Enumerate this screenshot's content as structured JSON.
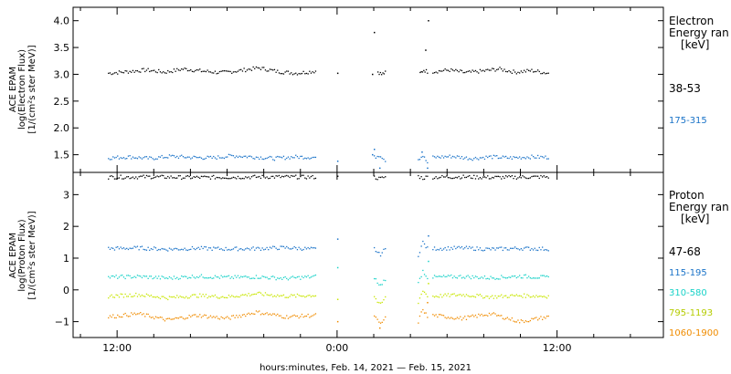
{
  "chart_data": [
    {
      "type": "scatter",
      "panel": "electron",
      "ylabel": [
        "ACE EPAM",
        "log(Electron Flux)",
        "[1/(cm²s ster MeV)]"
      ],
      "ylim": [
        1.17,
        4.25
      ],
      "yticks": [
        1.5,
        2.0,
        2.5,
        3.0,
        3.5,
        4.0
      ],
      "ytick_labels": [
        "1.5",
        "2.0",
        "2.5",
        "3.0",
        "3.5",
        "4.0"
      ],
      "legend_title": [
        "Electron",
        "Energy ran",
        "[keV]"
      ],
      "series": [
        {
          "name": "38-53",
          "color": "#000000",
          "segments": [
            {
              "x_start": -12.5,
              "x_end": -1.2,
              "values": [
                3.02,
                3.05,
                3.08,
                3.04,
                3.1,
                3.06,
                3.03,
                3.07,
                3.12,
                3.05,
                3.02,
                3.06
              ]
            },
            {
              "x_start": 2.2,
              "x_end": 2.6,
              "values": [
                3.05,
                3.0,
                3.03
              ]
            },
            {
              "x_start": 4.5,
              "x_end": 4.9,
              "values": [
                3.02,
                3.08,
                3.05
              ]
            },
            {
              "x_start": 5.2,
              "x_end": 11.5,
              "values": [
                3.05,
                3.08,
                3.03,
                3.06,
                3.1,
                3.04,
                3.07,
                3.02
              ]
            }
          ],
          "points": [
            {
              "x": 0.0,
              "y": 3.02
            },
            {
              "x": 1.9,
              "y": 3.0
            },
            {
              "x": 2.0,
              "y": 3.78
            },
            {
              "x": 4.8,
              "y": 3.45
            },
            {
              "x": 4.95,
              "y": 4.0
            }
          ]
        },
        {
          "name": "175-315",
          "color": "#1a73c8",
          "segments": [
            {
              "x_start": -12.5,
              "x_end": -1.2,
              "values": [
                1.44,
                1.46,
                1.43,
                1.47,
                1.45,
                1.44,
                1.48,
                1.46,
                1.43,
                1.46,
                1.45
              ]
            },
            {
              "x_start": 2.0,
              "x_end": 2.6,
              "values": [
                1.45,
                1.5,
                1.4
              ]
            },
            {
              "x_start": 4.4,
              "x_end": 4.9,
              "values": [
                1.42,
                1.48,
                1.35
              ]
            },
            {
              "x_start": 5.2,
              "x_end": 11.5,
              "values": [
                1.45,
                1.47,
                1.43,
                1.46,
                1.44,
                1.46,
                1.45
              ]
            }
          ],
          "points": [
            {
              "x": 0.0,
              "y": 1.38
            },
            {
              "x": 1.9,
              "y": 1.5
            },
            {
              "x": 2.0,
              "y": 1.6
            },
            {
              "x": 2.3,
              "y": 1.25
            },
            {
              "x": 4.6,
              "y": 1.55
            },
            {
              "x": 4.9,
              "y": 1.25
            }
          ]
        }
      ]
    },
    {
      "type": "scatter",
      "panel": "proton",
      "ylabel": [
        "ACE EPAM",
        "log(Proton Flux)",
        "[1/(cm²s ster MeV)]"
      ],
      "ylim": [
        -1.5,
        3.7
      ],
      "yticks": [
        -1,
        0,
        1,
        2,
        3
      ],
      "ytick_labels": [
        "−1",
        "0",
        "1",
        "2",
        "3"
      ],
      "legend_title": [
        "Proton",
        "Energy ran",
        "[keV]"
      ],
      "series": [
        {
          "name": "47-68",
          "color": "#000000",
          "segments": [
            {
              "x_start": -12.5,
              "x_end": -1.2,
              "values": [
                3.55,
                3.56,
                3.54,
                3.55,
                3.56,
                3.55
              ]
            },
            {
              "x_start": 2.0,
              "x_end": 2.6,
              "values": [
                3.55,
                3.5,
                3.56
              ]
            },
            {
              "x_start": 4.4,
              "x_end": 4.9,
              "values": [
                3.58,
                3.52,
                3.56
              ]
            },
            {
              "x_start": 5.2,
              "x_end": 11.5,
              "values": [
                3.55,
                3.56,
                3.54,
                3.55,
                3.56
              ]
            }
          ],
          "points": [
            {
              "x": 0.0,
              "y": 3.58
            }
          ]
        },
        {
          "name": "115-195",
          "color": "#1a73c8",
          "segments": [
            {
              "x_start": -12.5,
              "x_end": -1.2,
              "values": [
                1.3,
                1.32,
                1.28,
                1.31,
                1.29,
                1.3,
                1.33,
                1.28
              ]
            },
            {
              "x_start": 2.0,
              "x_end": 2.6,
              "values": [
                1.3,
                1.1,
                1.28
              ]
            },
            {
              "x_start": 4.4,
              "x_end": 4.9,
              "values": [
                1.1,
                1.5,
                1.3
              ]
            },
            {
              "x_start": 5.2,
              "x_end": 11.5,
              "values": [
                1.3,
                1.32,
                1.28,
                1.31,
                1.29
              ]
            }
          ],
          "points": [
            {
              "x": 0.0,
              "y": 1.6
            },
            {
              "x": 4.95,
              "y": 1.7
            }
          ]
        },
        {
          "name": "310-580",
          "color": "#19d2c8",
          "segments": [
            {
              "x_start": -12.5,
              "x_end": -1.2,
              "values": [
                0.4,
                0.42,
                0.37,
                0.43,
                0.39,
                0.41,
                0.36,
                0.42
              ]
            },
            {
              "x_start": 2.0,
              "x_end": 2.6,
              "values": [
                0.4,
                0.1,
                0.35
              ]
            },
            {
              "x_start": 4.4,
              "x_end": 4.9,
              "values": [
                0.2,
                0.6,
                0.4
              ]
            },
            {
              "x_start": 5.2,
              "x_end": 11.5,
              "values": [
                0.4,
                0.42,
                0.38,
                0.43,
                0.39
              ]
            }
          ],
          "points": [
            {
              "x": 0.0,
              "y": 0.7
            },
            {
              "x": 4.95,
              "y": 0.9
            }
          ]
        },
        {
          "name": "795-1193",
          "color": "#c8e600",
          "segments": [
            {
              "x_start": -12.5,
              "x_end": -1.2,
              "values": [
                -0.2,
                -0.15,
                -0.25,
                -0.18,
                -0.22,
                -0.12,
                -0.2,
                -0.17
              ]
            },
            {
              "x_start": 2.0,
              "x_end": 2.6,
              "values": [
                -0.2,
                -0.5,
                -0.25
              ]
            },
            {
              "x_start": 4.4,
              "x_end": 4.9,
              "values": [
                -0.4,
                0.0,
                -0.2
              ]
            },
            {
              "x_start": 5.2,
              "x_end": 11.5,
              "values": [
                -0.2,
                -0.15,
                -0.22,
                -0.18,
                -0.2
              ]
            }
          ],
          "points": [
            {
              "x": 0.0,
              "y": -0.3
            },
            {
              "x": 4.95,
              "y": 0.2
            }
          ]
        },
        {
          "name": "1060-1900",
          "color": "#f08c00",
          "segments": [
            {
              "x_start": -12.5,
              "x_end": -1.2,
              "values": [
                -0.85,
                -0.75,
                -0.95,
                -0.8,
                -0.9,
                -0.7,
                -0.85,
                -0.8
              ]
            },
            {
              "x_start": 2.0,
              "x_end": 2.6,
              "values": [
                -0.8,
                -1.1,
                -0.9
              ]
            },
            {
              "x_start": 4.4,
              "x_end": 4.9,
              "values": [
                -1.0,
                -0.6,
                -0.85
              ]
            },
            {
              "x_start": 5.2,
              "x_end": 11.5,
              "values": [
                -0.8,
                -0.9,
                -0.75,
                -1.0,
                -0.85
              ]
            }
          ],
          "points": [
            {
              "x": 0.0,
              "y": -1.0
            },
            {
              "x": 2.3,
              "y": -1.2
            },
            {
              "x": 4.9,
              "y": -0.4
            }
          ]
        }
      ]
    }
  ],
  "x_axis": {
    "xlim": [
      -14.4,
      17.8
    ],
    "ticks": [
      {
        "x": -12,
        "label": "12:00"
      },
      {
        "x": 0,
        "label": "0:00"
      },
      {
        "x": 12,
        "label": "12:00"
      }
    ],
    "minor_ticks": [
      -14,
      -10,
      -8,
      -6,
      -4,
      -2,
      2,
      4,
      6,
      8,
      10,
      14,
      16
    ],
    "title": "hours:minutes, Feb. 14, 2021 — Feb. 15, 2021"
  }
}
